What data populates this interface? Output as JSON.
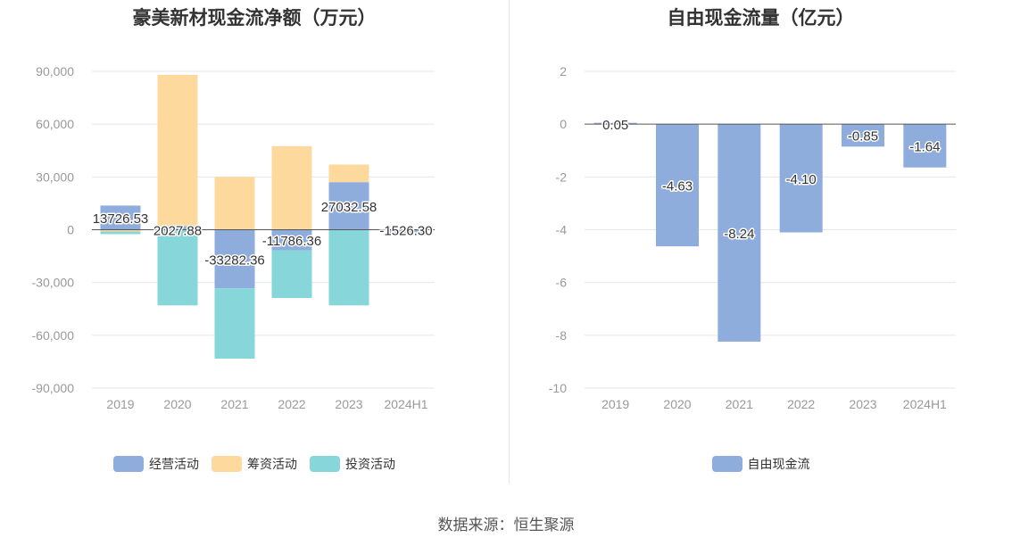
{
  "source_text": "数据来源：恒生聚源",
  "chart_data": [
    {
      "type": "bar",
      "stacked": true,
      "title": "豪美新材现金流净额（万元）",
      "categories": [
        "2019",
        "2020",
        "2021",
        "2022",
        "2023",
        "2024H1"
      ],
      "ylim": [
        -90000,
        90000
      ],
      "yticks": [
        90000,
        60000,
        30000,
        0,
        -30000,
        -60000,
        -90000
      ],
      "ytick_labels": [
        "90,000",
        "60,000",
        "30,000",
        "0",
        "-30,000",
        "-60,000",
        "-90,000"
      ],
      "grid": true,
      "legend_position": "bottom",
      "series": [
        {
          "name": "经营活动",
          "color": "#8eacdc",
          "values": [
            13726.53,
            2027.88,
            -33282.36,
            -11786.36,
            27032.58,
            -1526.3
          ],
          "labels": [
            "13726.53",
            "2027.88",
            "-33282.36",
            "-11786.36",
            "27032.58",
            "-1526.30"
          ]
        },
        {
          "name": "筹资活动",
          "color": "#fed99e",
          "values": [
            -1000,
            86000,
            30000,
            47500,
            10000,
            300
          ]
        },
        {
          "name": "投资活动",
          "color": "#86d6da",
          "values": [
            -1500,
            -43000,
            -40000,
            -27000,
            -43000,
            -1700
          ]
        }
      ]
    },
    {
      "type": "bar",
      "title": "自由现金流量（亿元）",
      "categories": [
        "2019",
        "2020",
        "2021",
        "2022",
        "2023",
        "2024H1"
      ],
      "ylim": [
        -10,
        2
      ],
      "yticks": [
        2,
        0,
        -2,
        -4,
        -6,
        -8,
        -10
      ],
      "ytick_labels": [
        "2",
        "0",
        "-2",
        "-4",
        "-6",
        "-8",
        "-10"
      ],
      "grid": true,
      "legend_position": "bottom",
      "series": [
        {
          "name": "自由现金流",
          "color": "#8eacdc",
          "values": [
            0.05,
            -4.63,
            -8.24,
            -4.1,
            -0.85,
            -1.64
          ],
          "labels": [
            "0.05",
            "-4.63",
            "-8.24",
            "-4.10",
            "-0.85",
            "-1.64"
          ]
        }
      ]
    }
  ]
}
